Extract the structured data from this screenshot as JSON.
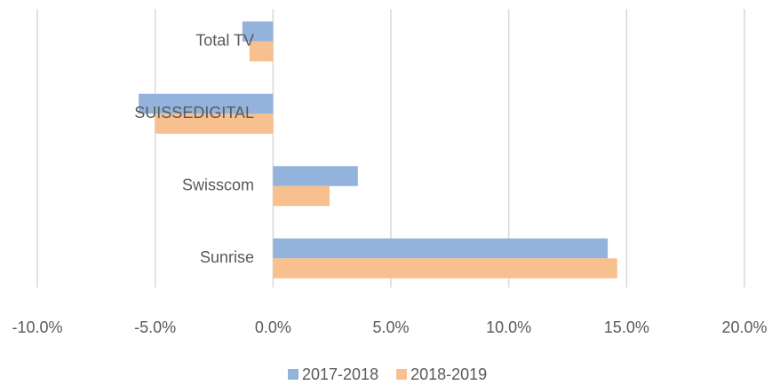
{
  "chart_data": {
    "type": "hbar",
    "categories": [
      "Total TV",
      "SUISSEDIGITAL",
      "Swisscom",
      "Sunrise"
    ],
    "series": [
      {
        "name": "2017-2018",
        "color": "#94b3dc",
        "values": [
          -1.3,
          -5.7,
          3.6,
          14.2
        ]
      },
      {
        "name": "2018-2019",
        "color": "#f8bf8f",
        "values": [
          -1.0,
          -5.0,
          2.4,
          14.6
        ]
      }
    ],
    "xlim": [
      -10,
      20
    ],
    "xticks": [
      {
        "value": -10,
        "label": "-10.0%"
      },
      {
        "value": -5,
        "label": "-5.0%"
      },
      {
        "value": 0,
        "label": "0.0%"
      },
      {
        "value": 5,
        "label": "5.0%"
      },
      {
        "value": 10,
        "label": "10.0%"
      },
      {
        "value": 15,
        "label": "15.0%"
      },
      {
        "value": 20,
        "label": "20.0%"
      }
    ],
    "grid": true,
    "legend": "bottom"
  }
}
